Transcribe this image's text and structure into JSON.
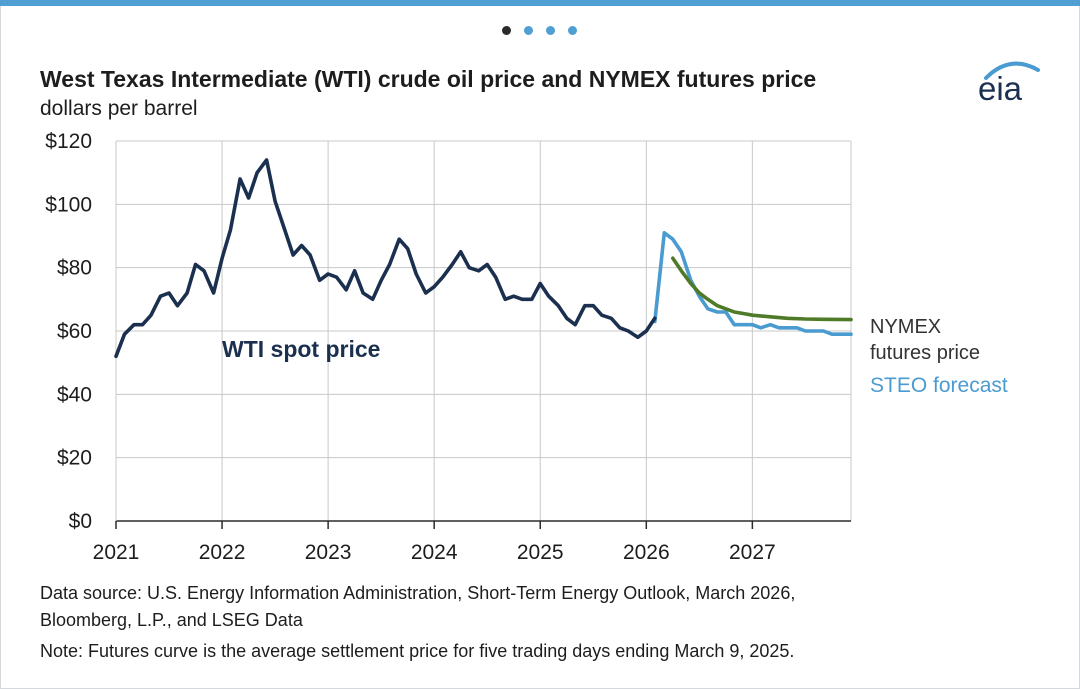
{
  "carousel": {
    "dot_count": 4,
    "active_index": 0,
    "active_color": "#2b2b2b",
    "inactive_color": "#4f9fd4"
  },
  "logo": {
    "text": "eia"
  },
  "chart_data": {
    "type": "line",
    "title": "West Texas Intermediate (WTI) crude oil price and NYMEX futures price",
    "subtitle": "dollars per barrel",
    "ylim": [
      0,
      120
    ],
    "y_ticks": [
      0,
      20,
      40,
      60,
      80,
      100,
      120
    ],
    "y_tick_labels": [
      "$0",
      "$20",
      "$40",
      "$60",
      "$80",
      "$100",
      "$120"
    ],
    "xlim": [
      2021.0,
      2027.93
    ],
    "x_ticks": [
      2021,
      2022,
      2023,
      2024,
      2025,
      2026,
      2027
    ],
    "x_tick_labels": [
      "2021",
      "2022",
      "2023",
      "2024",
      "2025",
      "2026",
      "2027"
    ],
    "grid": true,
    "series": [
      {
        "name": "WTI spot price",
        "label": "WTI spot price",
        "color": "#1b2f4f",
        "points": [
          [
            2021.0,
            52
          ],
          [
            2021.08,
            59
          ],
          [
            2021.17,
            62
          ],
          [
            2021.25,
            62
          ],
          [
            2021.33,
            65
          ],
          [
            2021.42,
            71
          ],
          [
            2021.5,
            72
          ],
          [
            2021.58,
            68
          ],
          [
            2021.67,
            72
          ],
          [
            2021.75,
            81
          ],
          [
            2021.83,
            79
          ],
          [
            2021.92,
            72
          ],
          [
            2022.0,
            83
          ],
          [
            2022.08,
            92
          ],
          [
            2022.17,
            108
          ],
          [
            2022.25,
            102
          ],
          [
            2022.33,
            110
          ],
          [
            2022.42,
            114
          ],
          [
            2022.5,
            101
          ],
          [
            2022.58,
            93
          ],
          [
            2022.67,
            84
          ],
          [
            2022.75,
            87
          ],
          [
            2022.83,
            84
          ],
          [
            2022.92,
            76
          ],
          [
            2023.0,
            78
          ],
          [
            2023.08,
            77
          ],
          [
            2023.17,
            73
          ],
          [
            2023.25,
            79
          ],
          [
            2023.33,
            72
          ],
          [
            2023.42,
            70
          ],
          [
            2023.5,
            76
          ],
          [
            2023.58,
            81
          ],
          [
            2023.67,
            89
          ],
          [
            2023.75,
            86
          ],
          [
            2023.83,
            78
          ],
          [
            2023.92,
            72
          ],
          [
            2024.0,
            74
          ],
          [
            2024.08,
            77
          ],
          [
            2024.17,
            81
          ],
          [
            2024.25,
            85
          ],
          [
            2024.33,
            80
          ],
          [
            2024.42,
            79
          ],
          [
            2024.5,
            81
          ],
          [
            2024.58,
            77
          ],
          [
            2024.67,
            70
          ],
          [
            2024.75,
            71
          ],
          [
            2024.83,
            70
          ],
          [
            2024.92,
            70
          ],
          [
            2025.0,
            75
          ],
          [
            2025.08,
            71
          ],
          [
            2025.17,
            68
          ],
          [
            2025.25,
            64
          ],
          [
            2025.33,
            62
          ],
          [
            2025.42,
            68
          ],
          [
            2025.5,
            68
          ],
          [
            2025.58,
            65
          ],
          [
            2025.67,
            64
          ],
          [
            2025.75,
            61
          ],
          [
            2025.83,
            60
          ],
          [
            2025.92,
            58
          ],
          [
            2026.0,
            60
          ],
          [
            2026.08,
            64
          ]
        ]
      },
      {
        "name": "STEO forecast",
        "label": "STEO forecast",
        "color": "#4a9bd0",
        "points": [
          [
            2026.08,
            63
          ],
          [
            2026.17,
            91
          ],
          [
            2026.25,
            89
          ],
          [
            2026.33,
            85
          ],
          [
            2026.42,
            76
          ],
          [
            2026.5,
            71
          ],
          [
            2026.58,
            67
          ],
          [
            2026.67,
            66
          ],
          [
            2026.75,
            66
          ],
          [
            2026.83,
            62
          ],
          [
            2026.92,
            62
          ],
          [
            2027.0,
            62
          ],
          [
            2027.08,
            61
          ],
          [
            2027.17,
            62
          ],
          [
            2027.25,
            61
          ],
          [
            2027.33,
            61
          ],
          [
            2027.42,
            61
          ],
          [
            2027.5,
            60
          ],
          [
            2027.58,
            60
          ],
          [
            2027.67,
            60
          ],
          [
            2027.75,
            59
          ],
          [
            2027.83,
            59
          ],
          [
            2027.93,
            59
          ]
        ]
      },
      {
        "name": "NYMEX futures price",
        "label_lines": [
          "NYMEX",
          "futures price"
        ],
        "color": "#4f7a28",
        "points": [
          [
            2026.25,
            83
          ],
          [
            2026.33,
            79
          ],
          [
            2026.42,
            75
          ],
          [
            2026.5,
            72
          ],
          [
            2026.58,
            70
          ],
          [
            2026.67,
            68
          ],
          [
            2026.75,
            67
          ],
          [
            2026.83,
            66
          ],
          [
            2026.92,
            65.5
          ],
          [
            2027.0,
            65
          ],
          [
            2027.17,
            64.5
          ],
          [
            2027.33,
            64
          ],
          [
            2027.5,
            63.8
          ],
          [
            2027.67,
            63.7
          ],
          [
            2027.93,
            63.6
          ]
        ]
      }
    ]
  },
  "footer": {
    "line1": "Data source: U.S. Energy Information Administration, Short-Term Energy Outlook, March 2026,",
    "line2": "Bloomberg, L.P., and LSEG Data",
    "note": "Note: Futures curve is the average settlement price for five trading days ending March 9, 2025."
  }
}
